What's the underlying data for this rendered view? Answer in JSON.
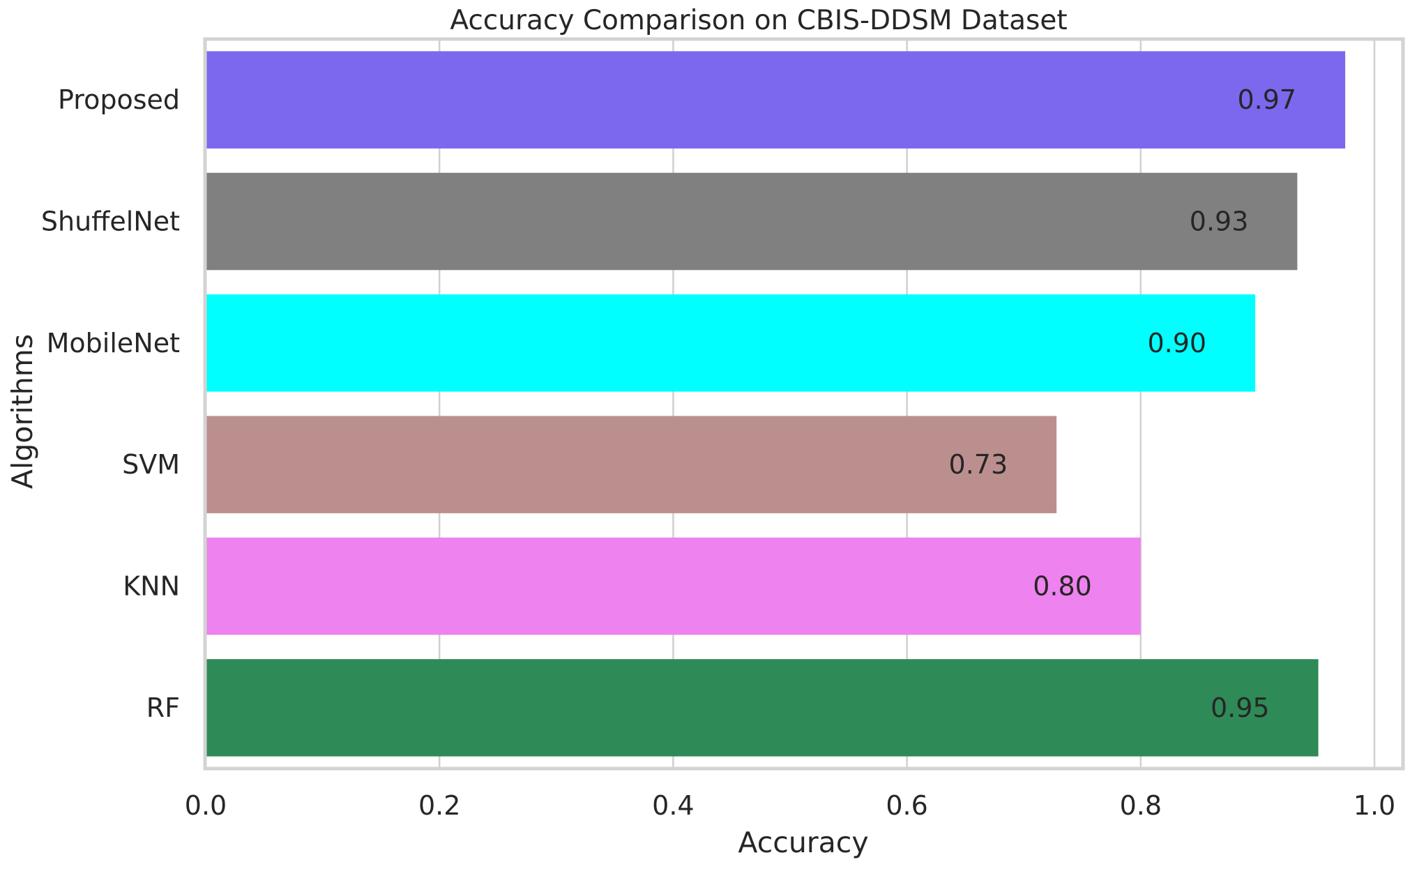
{
  "chart_data": {
    "type": "bar",
    "orientation": "horizontal",
    "title": "Accuracy Comparison on CBIS-DDSM Dataset",
    "xlabel": "Accuracy",
    "ylabel": "Algorithms",
    "xlim": [
      0.0,
      1.0
    ],
    "xticks": [
      "0.0",
      "0.2",
      "0.4",
      "0.6",
      "0.8",
      "1.0"
    ],
    "grid": true,
    "categories": [
      "Proposed",
      "ShuffelNet",
      "MobileNet",
      "SVM",
      "KNN",
      "RF"
    ],
    "values": [
      0.975,
      0.934,
      0.898,
      0.728,
      0.8,
      0.952
    ],
    "value_labels": [
      "0.97",
      "0.93",
      "0.90",
      "0.73",
      "0.80",
      "0.95"
    ],
    "colors": [
      "#7b68ee",
      "#808080",
      "#00ffff",
      "#bc8f8f",
      "#ee82ee",
      "#2e8b57"
    ]
  }
}
